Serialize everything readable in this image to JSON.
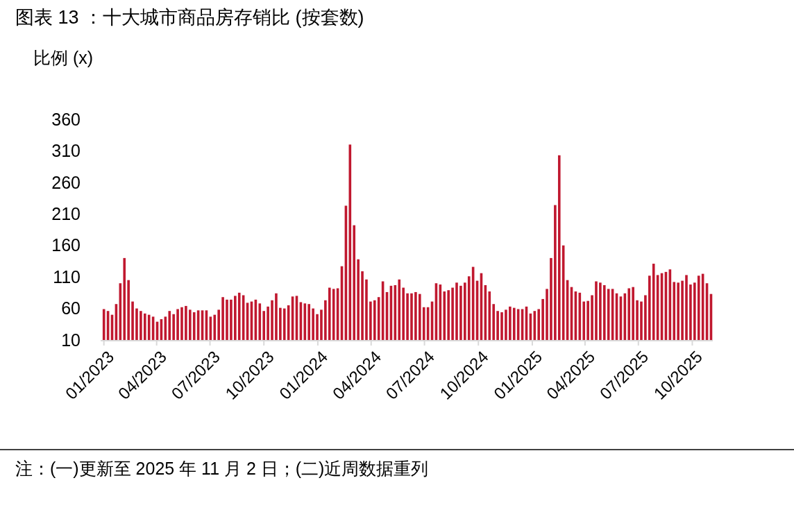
{
  "chart_data": {
    "type": "bar",
    "title": "图表 13 ：十大城市商品房存销比 (按套数)",
    "ylabel": "比例 (x)",
    "annotations": [
      "注：(一)更新至 2025 年 11 月 2 日；(二)近周数据重列"
    ],
    "x": [
      "2023-01-01",
      "2023-01-08",
      "2023-01-15",
      "2023-01-22",
      "2023-01-29",
      "2023-02-05",
      "2023-02-12",
      "2023-02-19",
      "2023-02-26",
      "2023-03-05",
      "2023-03-12",
      "2023-03-19",
      "2023-03-26",
      "2023-04-02",
      "2023-04-09",
      "2023-04-16",
      "2023-04-23",
      "2023-04-30",
      "2023-05-07",
      "2023-05-14",
      "2023-05-21",
      "2023-05-28",
      "2023-06-04",
      "2023-06-11",
      "2023-06-18",
      "2023-06-25",
      "2023-07-02",
      "2023-07-09",
      "2023-07-16",
      "2023-07-23",
      "2023-07-30",
      "2023-08-06",
      "2023-08-13",
      "2023-08-20",
      "2023-08-27",
      "2023-09-03",
      "2023-09-10",
      "2023-09-17",
      "2023-09-24",
      "2023-10-01",
      "2023-10-08",
      "2023-10-15",
      "2023-10-22",
      "2023-10-29",
      "2023-11-05",
      "2023-11-12",
      "2023-11-19",
      "2023-11-26",
      "2023-12-03",
      "2023-12-10",
      "2023-12-17",
      "2023-12-24",
      "2023-12-31",
      "2024-01-07",
      "2024-01-14",
      "2024-01-21",
      "2024-01-28",
      "2024-02-04",
      "2024-02-11",
      "2024-02-18",
      "2024-02-25",
      "2024-03-03",
      "2024-03-10",
      "2024-03-17",
      "2024-03-24",
      "2024-03-31",
      "2024-04-07",
      "2024-04-14",
      "2024-04-21",
      "2024-04-28",
      "2024-05-05",
      "2024-05-12",
      "2024-05-19",
      "2024-05-26",
      "2024-06-02",
      "2024-06-09",
      "2024-06-16",
      "2024-06-23",
      "2024-06-30",
      "2024-07-07",
      "2024-07-14",
      "2024-07-21",
      "2024-07-28",
      "2024-08-04",
      "2024-08-11",
      "2024-08-18",
      "2024-08-25",
      "2024-09-01",
      "2024-09-08",
      "2024-09-15",
      "2024-09-22",
      "2024-09-29",
      "2024-10-06",
      "2024-10-13",
      "2024-10-20",
      "2024-10-27",
      "2024-11-03",
      "2024-11-10",
      "2024-11-17",
      "2024-11-24",
      "2024-12-01",
      "2024-12-08",
      "2024-12-15",
      "2024-12-22",
      "2024-12-29",
      "2025-01-05",
      "2025-01-12",
      "2025-01-19",
      "2025-01-26",
      "2025-02-02",
      "2025-02-09",
      "2025-02-16",
      "2025-02-23",
      "2025-03-02",
      "2025-03-09",
      "2025-03-16",
      "2025-03-23",
      "2025-03-30",
      "2025-04-06",
      "2025-04-13",
      "2025-04-20",
      "2025-04-27",
      "2025-05-04",
      "2025-05-11",
      "2025-05-18",
      "2025-05-25",
      "2025-06-01",
      "2025-06-08",
      "2025-06-15",
      "2025-06-22",
      "2025-06-29",
      "2025-07-06",
      "2025-07-13",
      "2025-07-20",
      "2025-07-27",
      "2025-08-03",
      "2025-08-10",
      "2025-08-17",
      "2025-08-24",
      "2025-08-31",
      "2025-09-07",
      "2025-09-14",
      "2025-09-21",
      "2025-09-28",
      "2025-10-05",
      "2025-10-12",
      "2025-10-19",
      "2025-10-26",
      "2025-11-02"
    ],
    "values": [
      59,
      56,
      50,
      67,
      100,
      140,
      105,
      71,
      60,
      56,
      52,
      50,
      47,
      39,
      43,
      47,
      56,
      51,
      59,
      62,
      64,
      58,
      54,
      57,
      57,
      57,
      47,
      50,
      58,
      78,
      74,
      74,
      80,
      85,
      81,
      69,
      71,
      74,
      68,
      56,
      63,
      73,
      84,
      61,
      60,
      65,
      79,
      80,
      70,
      68,
      67,
      60,
      51,
      58,
      73,
      93,
      91,
      92,
      127,
      223,
      320,
      192,
      138,
      119,
      106,
      71,
      73,
      78,
      103,
      86,
      96,
      97,
      106,
      93,
      84,
      84,
      86,
      83,
      62,
      62,
      71,
      100,
      98,
      87,
      89,
      93,
      101,
      96,
      101,
      111,
      126,
      104,
      116,
      97,
      87,
      67,
      56,
      54,
      58,
      63,
      61,
      59,
      59,
      63,
      52,
      56,
      59,
      75,
      91,
      140,
      224,
      303,
      160,
      105,
      94,
      87,
      85,
      71,
      72,
      81,
      103,
      101,
      97,
      91,
      91,
      84,
      79,
      84,
      92,
      94,
      73,
      71,
      81,
      112,
      131,
      113,
      116,
      118,
      122,
      102,
      101,
      104,
      113,
      98,
      101,
      112,
      115,
      100,
      83
    ],
    "color": "#c0182f",
    "xlim": [
      "2022-12-30",
      "2025-11-05"
    ],
    "xticks": [
      {
        "value": "2023-01-01",
        "label": "01/2023"
      },
      {
        "value": "2023-04-01",
        "label": "04/2023"
      },
      {
        "value": "2023-07-01",
        "label": "07/2023"
      },
      {
        "value": "2023-10-01",
        "label": "10/2023"
      },
      {
        "value": "2024-01-01",
        "label": "01/2024"
      },
      {
        "value": "2024-04-01",
        "label": "04/2024"
      },
      {
        "value": "2024-07-01",
        "label": "07/2024"
      },
      {
        "value": "2024-10-01",
        "label": "10/2024"
      },
      {
        "value": "2025-01-01",
        "label": "01/2025"
      },
      {
        "value": "2025-04-01",
        "label": "04/2025"
      },
      {
        "value": "2025-07-01",
        "label": "07/2025"
      },
      {
        "value": "2025-10-01",
        "label": "10/2025"
      }
    ],
    "ylim": [
      10,
      360
    ],
    "yticks": [
      10,
      60,
      110,
      160,
      210,
      260,
      310,
      360
    ],
    "grid": false
  }
}
